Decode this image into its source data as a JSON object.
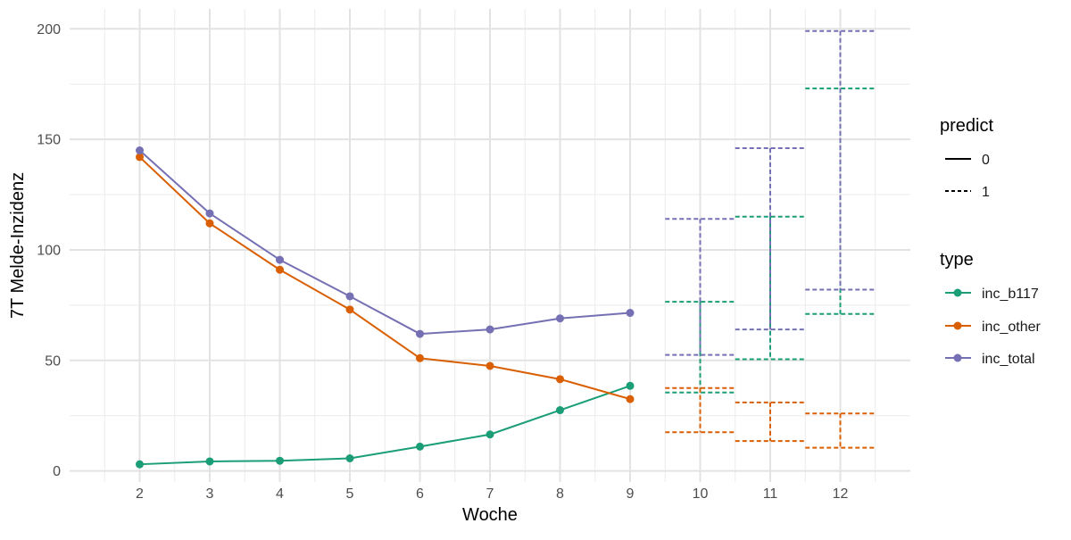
{
  "chart_data": {
    "type": "line",
    "xlabel": "Woche",
    "ylabel": "7T Melde-Inzidenz",
    "x_ticks": [
      2,
      3,
      4,
      5,
      6,
      7,
      8,
      9,
      10,
      11,
      12
    ],
    "y_ticks": [
      0,
      50,
      100,
      150,
      200
    ],
    "xlim": [
      1,
      13
    ],
    "ylim": [
      -5,
      209
    ],
    "grid": true,
    "legend_placement": "right",
    "legends": [
      {
        "title": "predict",
        "entries": [
          {
            "label": "0",
            "linetype": "solid"
          },
          {
            "label": "1",
            "linetype": "dashed"
          }
        ]
      },
      {
        "title": "type",
        "entries": [
          {
            "label": "inc_b117",
            "color": "#1b9e77"
          },
          {
            "label": "inc_other",
            "color": "#d95f02"
          },
          {
            "label": "inc_total",
            "color": "#7570b3"
          }
        ]
      }
    ],
    "series": [
      {
        "name": "inc_b117",
        "color": "#1b9e77",
        "observed": {
          "x": [
            2,
            3,
            4,
            5,
            6,
            7,
            8,
            9
          ],
          "y": [
            3,
            4.3,
            4.6,
            5.7,
            11,
            16.5,
            27.5,
            38.5
          ]
        },
        "predicted": {
          "x": [
            10,
            11,
            12
          ],
          "ymin": [
            35.5,
            50.5,
            71
          ],
          "ymax": [
            76.5,
            115,
            173
          ]
        }
      },
      {
        "name": "inc_other",
        "color": "#d95f02",
        "observed": {
          "x": [
            2,
            3,
            4,
            5,
            6,
            7,
            8,
            9
          ],
          "y": [
            142,
            112,
            91,
            73,
            51,
            47.5,
            41.5,
            32.5
          ]
        },
        "predicted": {
          "x": [
            10,
            11,
            12
          ],
          "ymin": [
            17.5,
            13.5,
            10.5
          ],
          "ymax": [
            37.5,
            31,
            26
          ]
        }
      },
      {
        "name": "inc_total",
        "color": "#7570b3",
        "observed": {
          "x": [
            2,
            3,
            4,
            5,
            6,
            7,
            8,
            9
          ],
          "y": [
            145,
            116.5,
            95.5,
            79,
            62,
            64,
            69,
            71.5
          ]
        },
        "predicted": {
          "x": [
            10,
            11,
            12
          ],
          "ymin": [
            52.5,
            64,
            82
          ],
          "ymax": [
            114,
            146,
            199
          ]
        }
      }
    ]
  }
}
